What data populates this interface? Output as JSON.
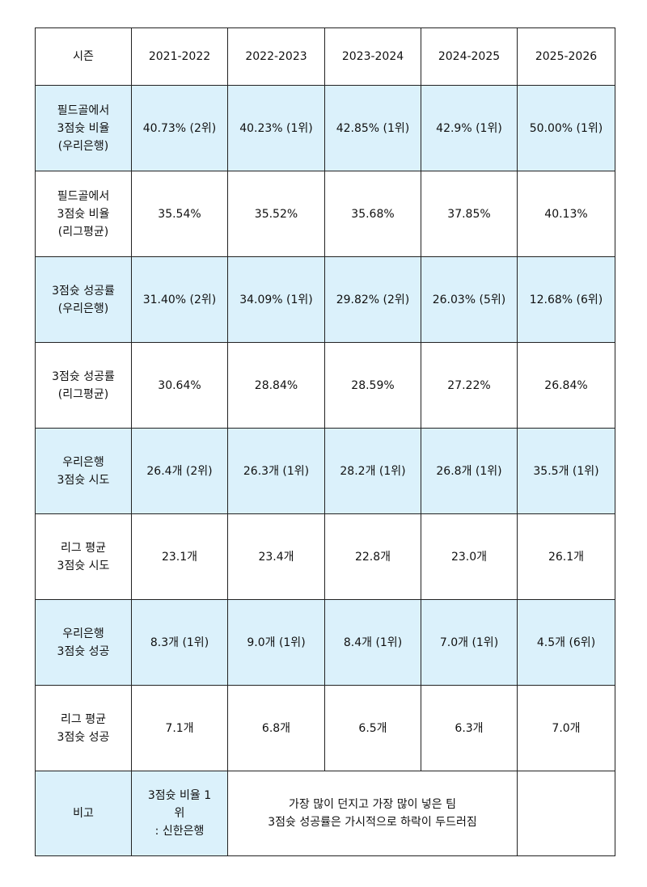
{
  "header": [
    "시즌",
    "2021-2022",
    "2022-2023",
    "2023-2024",
    "2024-2025",
    "2025-2026"
  ],
  "rows": [
    {
      "label": [
        "필드골에서",
        "3점슛 비율",
        "(우리은행)"
      ],
      "values": [
        "40.73% (2위)",
        "40.23% (1위)",
        "42.85% (1위)",
        "42.9% (1위)",
        "50.00% (1위)"
      ],
      "highlight": true
    },
    {
      "label": [
        "필드골에서",
        "3점슛 비율",
        "(리그평균)"
      ],
      "values": [
        "35.54%",
        "35.52%",
        "35.68%",
        "37.85%",
        "40.13%"
      ],
      "highlight": false
    },
    {
      "label": [
        "3점슛 성공률",
        "(우리은행)"
      ],
      "values": [
        "31.40% (2위)",
        "34.09% (1위)",
        "29.82% (2위)",
        "26.03% (5위)",
        "12.68% (6위)"
      ],
      "highlight": true
    },
    {
      "label": [
        "3점슛 성공률",
        "(리그평균)"
      ],
      "values": [
        "30.64%",
        "28.84%",
        "28.59%",
        "27.22%",
        "26.84%"
      ],
      "highlight": false
    },
    {
      "label": [
        "우리은행",
        "3점슛 시도"
      ],
      "values": [
        "26.4개 (2위)",
        "26.3개 (1위)",
        "28.2개 (1위)",
        "26.8개 (1위)",
        "35.5개 (1위)"
      ],
      "highlight": true
    },
    {
      "label": [
        "리그 평균",
        "3점슛 시도"
      ],
      "values": [
        "23.1개",
        "23.4개",
        "22.8개",
        "23.0개",
        "26.1개"
      ],
      "highlight": false
    },
    {
      "label": [
        "우리은행",
        "3점슛 성공"
      ],
      "values": [
        "8.3개 (1위)",
        "9.0개 (1위)",
        "8.4개 (1위)",
        "7.0개 (1위)",
        "4.5개 (6위)"
      ],
      "highlight": true
    },
    {
      "label": [
        "리그 평균",
        "3점슛 성공"
      ],
      "values": [
        "7.1개",
        "6.8개",
        "6.5개",
        "6.3개",
        "7.0개"
      ],
      "highlight": false
    }
  ],
  "note": {
    "label": "비고",
    "first": [
      "3점슛 비율 1",
      "위",
      ": 신한은행"
    ],
    "merged": [
      "가장 많이 던지고 가장 많이 넣은 팀",
      "3점슛 성공률은 가시적으로 하락이 두드러짐"
    ],
    "last": ""
  },
  "colors": {
    "highlight": "#dbf1fb",
    "border": "#222222",
    "text": "#111111"
  }
}
